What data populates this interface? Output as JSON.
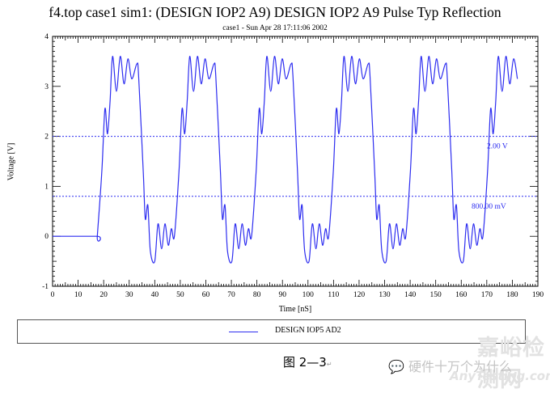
{
  "title": "f4.top case1 sim1: (DESIGN IOP2 A9) DESIGN IOP2 A9 Pulse Typ Reflection",
  "subtitle": "case1 - Sun Apr 28 17:11:06 2002",
  "caption": "图 2—3",
  "caption_mark": "↵",
  "watermark": {
    "wechat": "硬件十万个为什么",
    "site_cn": "嘉峪检测网",
    "site_en": "AnyTesting.com"
  },
  "chart_data": {
    "type": "line",
    "title": "f4.top case1 sim1: (DESIGN IOP2 A9) DESIGN IOP2 A9 Pulse Typ Reflection",
    "subtitle": "case1 - Sun Apr 28 17:11:06 2002",
    "xlabel": "Time [nS]",
    "ylabel": "Voltage [V]",
    "xlim": [
      0,
      190
    ],
    "ylim": [
      -1,
      4
    ],
    "x_ticks": [
      0,
      10,
      20,
      30,
      40,
      50,
      60,
      70,
      80,
      90,
      100,
      110,
      120,
      130,
      140,
      150,
      160,
      170,
      180,
      190
    ],
    "y_ticks": [
      -1,
      0,
      1,
      2,
      3,
      4
    ],
    "grid": false,
    "line_color": "#2d2df0",
    "legend": {
      "position": "bottom",
      "entries": [
        "DESIGN IOP5 AD2"
      ]
    },
    "reference_lines": [
      {
        "y": 2.0,
        "label": "2.00 V",
        "style": "dotted"
      },
      {
        "y": 0.8,
        "label": "800.00 mV",
        "style": "dotted"
      }
    ],
    "series": [
      {
        "name": "DESIGN IOP5 AD2",
        "description": "Periodic pulse ~30.2 nS period with ringing; first edge at ~17.5 nS; trace ends ~182 nS",
        "pre_edge": [
          [
            0,
            0.0
          ],
          [
            17.5,
            0.0
          ]
        ],
        "period_ns": 30.2,
        "cycles": 6,
        "pulse_template": [
          [
            0.0,
            0.0
          ],
          [
            1.8,
            1.3
          ],
          [
            3.0,
            2.55
          ],
          [
            4.0,
            2.05
          ],
          [
            5.0,
            2.7
          ],
          [
            6.0,
            3.6
          ],
          [
            7.5,
            2.9
          ],
          [
            9.0,
            3.6
          ],
          [
            10.5,
            3.05
          ],
          [
            12.0,
            3.55
          ],
          [
            13.5,
            3.15
          ],
          [
            15.5,
            3.45
          ],
          [
            16.2,
            3.2
          ],
          [
            18.0,
            1.3
          ],
          [
            18.8,
            0.35
          ],
          [
            19.8,
            0.62
          ],
          [
            20.8,
            -0.3
          ],
          [
            22.5,
            -0.5
          ],
          [
            23.8,
            0.25
          ],
          [
            25.2,
            -0.25
          ],
          [
            26.5,
            0.25
          ],
          [
            27.8,
            -0.18
          ],
          [
            29.0,
            0.15
          ],
          [
            30.2,
            0.0
          ]
        ],
        "last_cycle_end_ns": 182,
        "end_value": 3.15
      }
    ]
  }
}
